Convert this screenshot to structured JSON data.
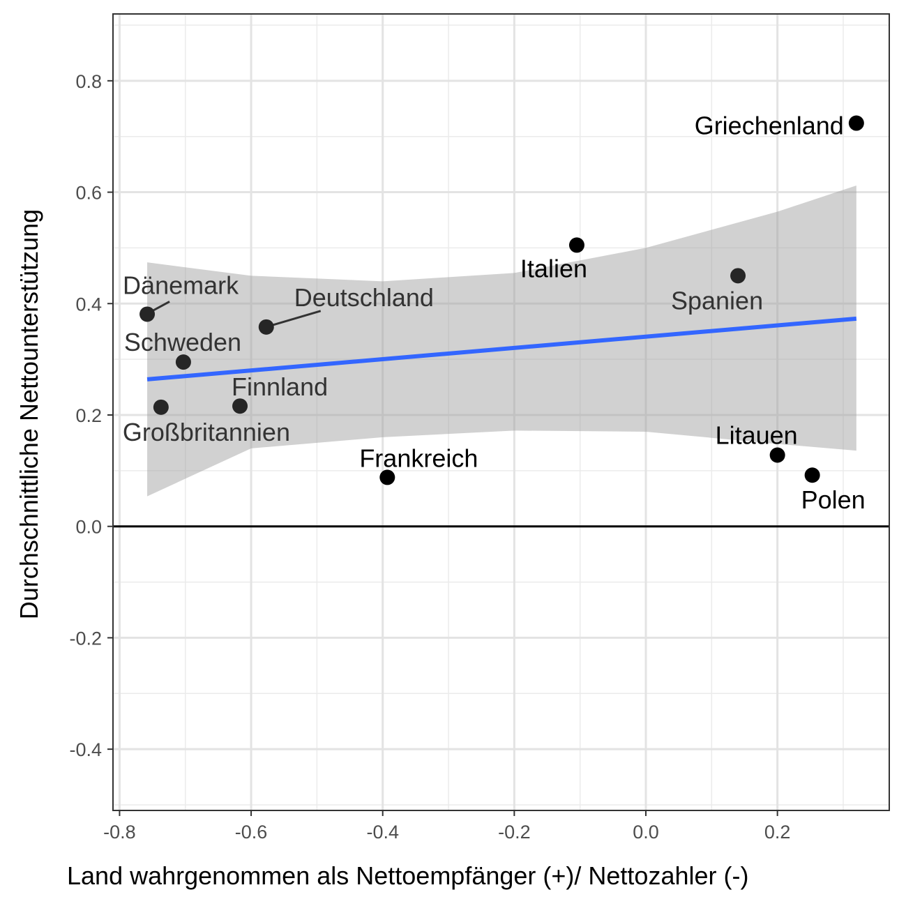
{
  "chart_data": {
    "type": "scatter",
    "xlabel": "Land wahrgenommen als Nettoempfänger (+)/ Nettozahler (-)",
    "ylabel": "Durchschnittliche Nettounterstützung",
    "xlim": [
      -0.81,
      0.37
    ],
    "ylim": [
      -0.51,
      0.92
    ],
    "x_ticks": [
      -0.8,
      -0.6,
      -0.4,
      -0.2,
      0.0,
      0.2
    ],
    "x_tick_labels": [
      "-0.8",
      "-0.6",
      "-0.4",
      "-0.2",
      "0.0",
      "0.2"
    ],
    "y_ticks": [
      -0.4,
      -0.2,
      0.0,
      0.2,
      0.4,
      0.6,
      0.8
    ],
    "y_tick_labels": [
      "-0.4",
      "-0.2",
      "0.0",
      "0.2",
      "0.4",
      "0.6",
      "0.8"
    ],
    "grid": true,
    "reference_line_y": 0.0,
    "points": [
      {
        "label": "Griechenland",
        "x": 0.32,
        "y": 0.724
      },
      {
        "label": "Italien",
        "x": -0.105,
        "y": 0.505
      },
      {
        "label": "Spanien",
        "x": 0.14,
        "y": 0.45
      },
      {
        "label": "Dänemark",
        "x": -0.758,
        "y": 0.381
      },
      {
        "label": "Deutschland",
        "x": -0.577,
        "y": 0.358
      },
      {
        "label": "Schweden",
        "x": -0.703,
        "y": 0.295
      },
      {
        "label": "Finnland",
        "x": -0.617,
        "y": 0.216
      },
      {
        "label": "Großbritannien",
        "x": -0.737,
        "y": 0.214
      },
      {
        "label": "Frankreich",
        "x": -0.393,
        "y": 0.088
      },
      {
        "label": "Litauen",
        "x": 0.2,
        "y": 0.128
      },
      {
        "label": "Polen",
        "x": 0.253,
        "y": 0.092
      }
    ],
    "regression_line": {
      "x": [
        -0.758,
        0.32
      ],
      "y": [
        0.264,
        0.373
      ],
      "color": "#3366FF"
    },
    "confidence_band": {
      "x": [
        -0.758,
        -0.6,
        -0.4,
        -0.2,
        0.0,
        0.2,
        0.32
      ],
      "upper": [
        0.474,
        0.45,
        0.44,
        0.455,
        0.5,
        0.565,
        0.612
      ],
      "lower": [
        0.054,
        0.14,
        0.16,
        0.172,
        0.17,
        0.148,
        0.136
      ],
      "color": "#999999"
    }
  }
}
